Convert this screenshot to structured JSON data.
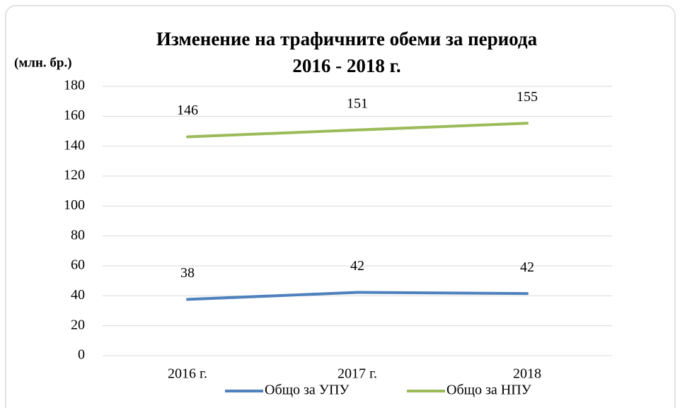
{
  "chart_data": {
    "type": "line",
    "title": [
      "Изменение на трафичните обеми за периода",
      "2016 - 2018 г."
    ],
    "y_label": "(млн. бр.)",
    "categories": [
      "2016 г.",
      "2017 г.",
      "2018"
    ],
    "series": [
      {
        "name": "Общо за УПУ",
        "color": "#4f81bd",
        "values": [
          37.6,
          42.3,
          41.5
        ],
        "value_labels": [
          "38",
          "42",
          "42"
        ]
      },
      {
        "name": "Общо за НПУ",
        "color": "#9bbb59",
        "values": [
          146.2,
          150.8,
          155.3
        ],
        "value_labels": [
          "146",
          "151",
          "155"
        ]
      }
    ],
    "ylim": [
      0,
      180
    ],
    "yticks": [
      0,
      20,
      40,
      60,
      80,
      100,
      120,
      140,
      160,
      180
    ],
    "grid": true
  }
}
